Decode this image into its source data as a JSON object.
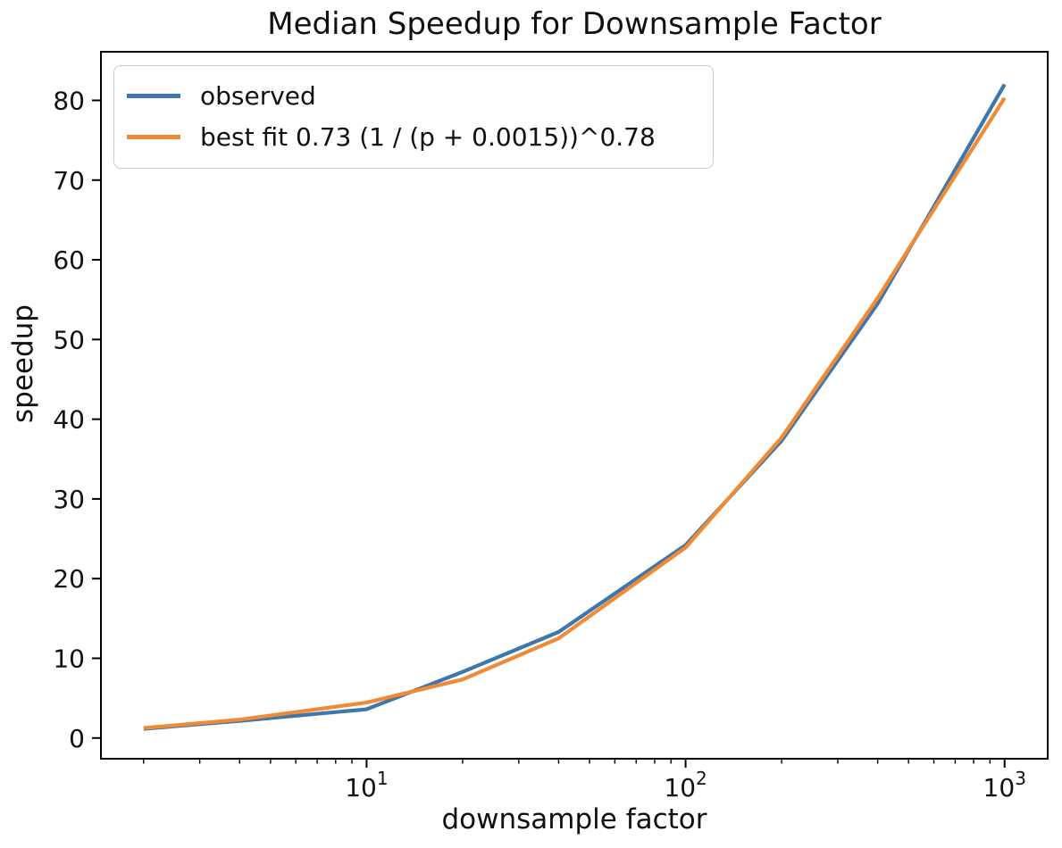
{
  "chart_data": {
    "type": "line",
    "title": "Median Speedup for Downsample Factor",
    "xlabel": "downsample factor",
    "ylabel": "speedup",
    "x_scale": "log",
    "grid": false,
    "legend_position": "upper left",
    "x": [
      2,
      4,
      10,
      20,
      40,
      100,
      200,
      400,
      1000
    ],
    "series": [
      {
        "name": "observed",
        "color": "#3e76ad",
        "values": [
          1.15,
          2.15,
          3.6,
          8.3,
          13.3,
          24.2,
          37.3,
          54.5,
          82.0
        ]
      },
      {
        "name": "best fit 0.73 (1 / (p + 0.0015))^0.78",
        "color": "#f08a34",
        "values": [
          1.25,
          2.3,
          4.45,
          7.35,
          12.5,
          23.9,
          37.7,
          55.2,
          80.3
        ]
      }
    ],
    "xlim": [
      1.47,
      1365
    ],
    "ylim": [
      -2.6,
      86.1
    ],
    "x_major_ticks": [
      10,
      100,
      1000
    ],
    "x_tick_labels": [
      {
        "base": "10",
        "sup": "1"
      },
      {
        "base": "10",
        "sup": "2"
      },
      {
        "base": "10",
        "sup": "3"
      }
    ],
    "y_ticks": [
      0,
      10,
      20,
      30,
      40,
      50,
      60,
      70,
      80
    ],
    "y_tick_labels": [
      "0",
      "10",
      "20",
      "30",
      "40",
      "50",
      "60",
      "70",
      "80"
    ]
  }
}
